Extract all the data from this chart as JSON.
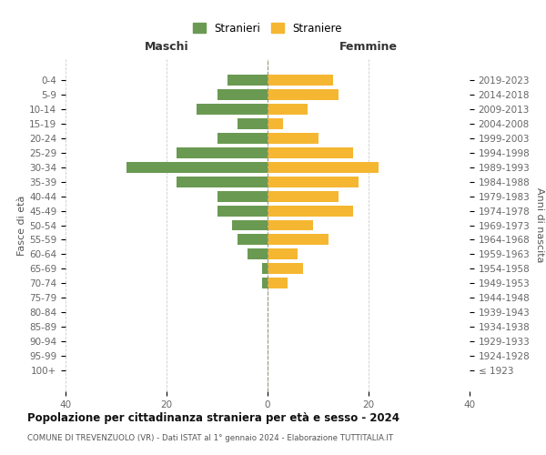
{
  "age_groups": [
    "100+",
    "95-99",
    "90-94",
    "85-89",
    "80-84",
    "75-79",
    "70-74",
    "65-69",
    "60-64",
    "55-59",
    "50-54",
    "45-49",
    "40-44",
    "35-39",
    "30-34",
    "25-29",
    "20-24",
    "15-19",
    "10-14",
    "5-9",
    "0-4"
  ],
  "birth_years": [
    "≤ 1923",
    "1924-1928",
    "1929-1933",
    "1934-1938",
    "1939-1943",
    "1944-1948",
    "1949-1953",
    "1954-1958",
    "1959-1963",
    "1964-1968",
    "1969-1973",
    "1974-1978",
    "1979-1983",
    "1984-1988",
    "1989-1993",
    "1994-1998",
    "1999-2003",
    "2004-2008",
    "2009-2013",
    "2014-2018",
    "2019-2023"
  ],
  "maschi": [
    0,
    0,
    0,
    0,
    0,
    0,
    1,
    1,
    4,
    6,
    7,
    10,
    10,
    18,
    28,
    18,
    10,
    6,
    14,
    10,
    8
  ],
  "femmine": [
    0,
    0,
    0,
    0,
    0,
    0,
    4,
    7,
    6,
    12,
    9,
    17,
    14,
    18,
    22,
    17,
    10,
    3,
    8,
    14,
    13
  ],
  "color_maschi": "#6a9a52",
  "color_femmine": "#f5b731",
  "title": "Popolazione per cittadinanza straniera per età e sesso - 2024",
  "subtitle": "COMUNE DI TREVENZUOLO (VR) - Dati ISTAT al 1° gennaio 2024 - Elaborazione TUTTITALIA.IT",
  "legend_maschi": "Stranieri",
  "legend_femmine": "Straniere",
  "label_maschi": "Maschi",
  "label_femmine": "Femmine",
  "ylabel_left": "Fasce di età",
  "ylabel_right": "Anni di nascita",
  "xlim": 40,
  "background_color": "#ffffff",
  "grid_color": "#cccccc"
}
